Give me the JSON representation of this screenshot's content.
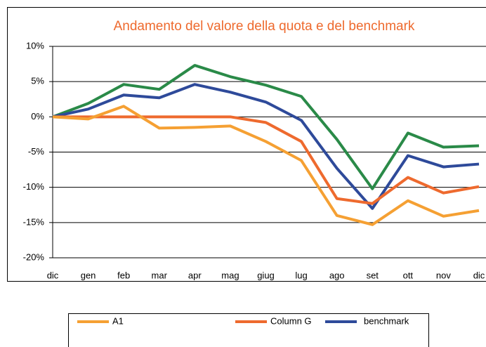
{
  "chart_data": {
    "type": "line",
    "title": "Andamento del valore della quota e del benchmark",
    "categories": [
      "dic",
      "gen",
      "feb",
      "mar",
      "apr",
      "mag",
      "giug",
      "lug",
      "ago",
      "set",
      "ott",
      "nov",
      "dic"
    ],
    "series": [
      {
        "name": "A1",
        "color": "#f5a033",
        "values": [
          0,
          -0.3,
          1.5,
          -1.6,
          -1.5,
          -1.3,
          -3.5,
          -6.2,
          -14,
          -15.3,
          -11.9,
          -14.1,
          -13.3
        ]
      },
      {
        "name": "Column G",
        "color": "#ee6a2e",
        "values": [
          0,
          0,
          0,
          0,
          0,
          0,
          -0.8,
          -3.5,
          -11.6,
          -12.3,
          -8.6,
          -10.8,
          -9.9
        ]
      },
      {
        "name": "benchmark",
        "color": "#2e4a9a",
        "values": [
          0,
          1.1,
          3.1,
          2.7,
          4.6,
          3.5,
          2.1,
          -0.5,
          -7.3,
          -13,
          -5.5,
          -7.1,
          -6.7
        ]
      },
      {
        "color": "#2a8a48",
        "values": [
          0,
          1.9,
          4.6,
          3.9,
          7.3,
          5.7,
          4.5,
          2.9,
          -3.2,
          -10.2,
          -2.3,
          -4.3,
          -4.1
        ]
      }
    ],
    "ylim": [
      -20,
      10
    ],
    "yticks": [
      {
        "value": -20,
        "label": "-20%"
      },
      {
        "value": -15,
        "label": "-15%"
      },
      {
        "value": -10,
        "label": "-10%"
      },
      {
        "value": -5,
        "label": "-5%"
      },
      {
        "value": 0,
        "label": "0%"
      },
      {
        "value": 5,
        "label": "5%"
      },
      {
        "value": 10,
        "label": "10%"
      }
    ],
    "grid": true
  }
}
